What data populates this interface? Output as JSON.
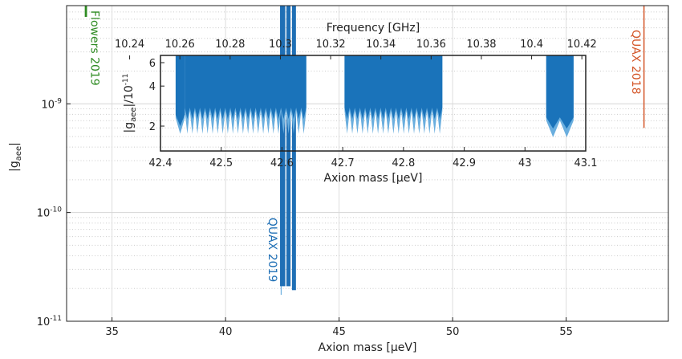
{
  "chart_data": [
    {
      "type": "area",
      "xlabel": "Axion mass [μeV]",
      "ylabel": "|g_aee|",
      "xlim": [
        33,
        59.5
      ],
      "ylim": [
        1e-11,
        8e-09
      ],
      "yscale": "log",
      "grid": true,
      "x_ticks": [
        35,
        40,
        45,
        50,
        55
      ],
      "y_ticks": [
        {
          "value": 1e-11,
          "label": "10⁻¹¹"
        },
        {
          "value": 1e-10,
          "label": "10⁻¹⁰"
        },
        {
          "value": 1e-09,
          "label": "10⁻⁹"
        }
      ],
      "series": [
        {
          "name": "Flowers 2019",
          "color": "#2e8b22",
          "x_range": [
            33.8,
            33.9
          ],
          "y_min": 6.3e-09,
          "y_max": 8e-09
        },
        {
          "name": "QUAX 2019",
          "color": "#1f6fb5",
          "x_range": [
            42.4,
            43.1
          ],
          "y_min": 2.1e-11,
          "y_max": 8e-09,
          "lower_tail": 1.75e-11
        },
        {
          "name": "QUAX 2018",
          "color": "#d4572a",
          "x_range": [
            58.4,
            58.45
          ],
          "y_min": 6e-10,
          "y_max": 8e-09
        }
      ]
    },
    {
      "type": "area",
      "xlabel": "Axion mass [μeV]",
      "ylabel": "|g_aee|/10⁻¹¹",
      "x2label": "Frequency [GHz]",
      "xlim": [
        42.4,
        43.1
      ],
      "ylim": [
        1.3,
        6.8
      ],
      "yscale": "log",
      "x_ticks": [
        42.4,
        42.5,
        42.6,
        42.7,
        42.8,
        42.9,
        43,
        43.1
      ],
      "x_tick_labels": [
        "42.4",
        "42.5",
        "42.6",
        "42.7",
        "42.8",
        "42.9",
        "43",
        "43.1"
      ],
      "y_ticks": [
        2,
        4,
        6
      ],
      "freq_ticks": [
        "10.24",
        "10.26",
        "10.28",
        "10.3",
        "10.32",
        "10.34",
        "10.36",
        "10.38",
        "10.4",
        "10.42"
      ],
      "freq_tick_values": [
        10.24,
        10.26,
        10.28,
        10.3,
        10.32,
        10.34,
        10.36,
        10.38,
        10.4,
        10.42
      ],
      "bands": [
        {
          "x_range": [
            42.425,
            42.44
          ],
          "teeth": 1,
          "y_top": 6.8,
          "y_dark_min": 2.3,
          "y_light_min": 1.75
        },
        {
          "x_range": [
            42.44,
            42.64
          ],
          "teeth": 24,
          "y_top": 6.8,
          "y_dark_min": 2.6,
          "y_light_min": 1.75
        },
        {
          "x_range": [
            42.703,
            42.864
          ],
          "teeth": 19,
          "y_top": 6.8,
          "y_dark_min": 2.6,
          "y_light_min": 1.75
        },
        {
          "x_range": [
            43.035,
            43.08
          ],
          "teeth": 2,
          "y_top": 6.8,
          "y_dark_min": 2.2,
          "y_light_min": 1.65
        }
      ],
      "colors": {
        "dark": "#1a73ba",
        "light": "#6aaede"
      }
    }
  ]
}
